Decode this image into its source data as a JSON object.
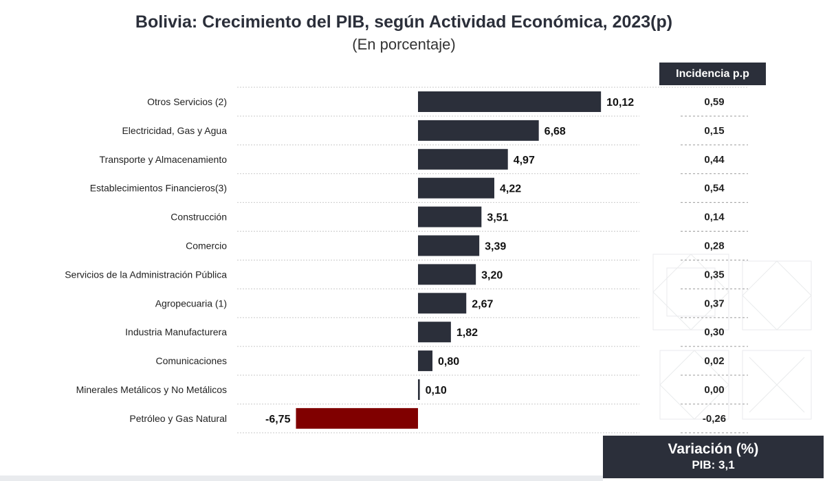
{
  "header": {
    "title": "Bolivia: Crecimiento del PIB, según Actividad Económica, 2023(p)",
    "subtitle": "(En porcentaje)"
  },
  "incidence": {
    "header": "Incidencia p.p",
    "values": [
      "0,59",
      "0,15",
      "0,44",
      "0,54",
      "0,14",
      "0,28",
      "0,35",
      "0,37",
      "0,30",
      "0,02",
      "0,00",
      "-0,26"
    ]
  },
  "footer": {
    "title": "Variación (%)",
    "value": "PIB: 3,1"
  },
  "colors": {
    "positive_bar": "#2b2f3a",
    "negative_bar": "#800000",
    "header_bg": "#2b2f3a"
  },
  "chart_data": {
    "type": "bar",
    "orientation": "horizontal",
    "title": "Bolivia: Crecimiento del PIB, según Actividad Económica, 2023(p)",
    "subtitle": "(En porcentaje)",
    "categories": [
      "Otros Servicios (2)",
      "Electricidad, Gas y Agua",
      "Transporte y Almacenamiento",
      "Establecimientos Financieros(3)",
      "Construcción",
      "Comercio",
      "Servicios de la Administración Pública",
      "Agropecuaria (1)",
      "Industria Manufacturera",
      "Comunicaciones",
      "Minerales Metálicos y No Metálicos",
      "Petróleo y Gas Natural"
    ],
    "values": [
      10.12,
      6.68,
      4.97,
      4.22,
      3.51,
      3.39,
      3.2,
      2.67,
      1.82,
      0.8,
      0.1,
      -6.75
    ],
    "value_labels": [
      "10,12",
      "6,68",
      "4,97",
      "4,22",
      "3,51",
      "3,39",
      "3,20",
      "2,67",
      "1,82",
      "0,80",
      "0,10",
      "-6,75"
    ],
    "xlim": [
      -6.75,
      10.12
    ],
    "grid": false
  }
}
